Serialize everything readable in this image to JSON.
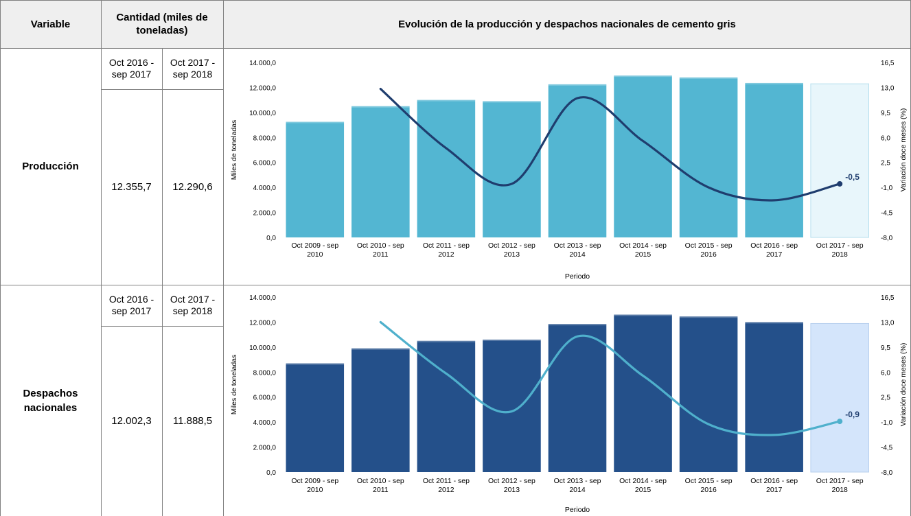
{
  "header": {
    "variable": "Variable",
    "cantidad": "Cantidad (miles de toneladas)",
    "chart_title": "Evolución de la producción y despachos nacionales de cemento gris"
  },
  "rows": [
    {
      "label": "Producción",
      "period_a": "Oct 2016 - sep 2017",
      "period_b": "Oct 2017 - sep 2018",
      "value_a": "12.355,7",
      "value_b": "12.290,6"
    },
    {
      "label": "Despachos nacionales",
      "period_a": "Oct 2016 - sep 2017",
      "period_b": "Oct 2017 - sep 2018",
      "value_a": "12.002,3",
      "value_b": "11.888,5"
    }
  ],
  "chart_data": [
    {
      "type": "bar",
      "categories": [
        "Oct 2009 - sep 2010",
        "Oct 2010 - sep 2011",
        "Oct 2011 - sep 2012",
        "Oct 2012 - sep 2013",
        "Oct 2013 - sep 2014",
        "Oct 2014 - sep 2015",
        "Oct 2015 - sep 2016",
        "Oct 2016 - sep 2017",
        "Oct 2017 - sep 2018"
      ],
      "series": [
        {
          "values": [
            9250,
            10500,
            11000,
            10900,
            12250,
            12950,
            12800,
            12356,
            12291
          ],
          "axis": "left"
        },
        {
          "type": "line",
          "values": [
            null,
            12.8,
            4.5,
            -0.5,
            11.5,
            5.5,
            -1.0,
            -2.8,
            -0.5
          ],
          "axis": "right"
        }
      ],
      "xlabel": "Periodo",
      "ylabel": "Miles de toneladas",
      "y2label": "Variación doce meses (%)",
      "ylim": [
        0,
        14000
      ],
      "y2lim": [
        -8.0,
        16.5
      ],
      "yticks": [
        "0,0",
        "2.000,0",
        "4.000,0",
        "6.000,0",
        "8.000,0",
        "10.000,0",
        "12.000,0",
        "14.000,0"
      ],
      "y2ticks": [
        "-8,0",
        "-4,5",
        "-1,0",
        "2,5",
        "6,0",
        "9,5",
        "13,0",
        "16,5"
      ],
      "annotation": "-0,5",
      "colors": {
        "bar": "#53b6d2",
        "bar_highlight": "#e8f6fb",
        "bar_highlight_border": "#b6dfee",
        "line": "#1f3d6e",
        "annotation": "#1f3d6e"
      }
    },
    {
      "type": "bar",
      "categories": [
        "Oct 2009 - sep 2010",
        "Oct 2010 - sep 2011",
        "Oct 2011 - sep 2012",
        "Oct 2012 - sep 2013",
        "Oct 2013 - sep 2014",
        "Oct 2014 - sep 2015",
        "Oct 2015 - sep 2016",
        "Oct 2016 - sep 2017",
        "Oct 2017 - sep 2018"
      ],
      "series": [
        {
          "values": [
            8700,
            9900,
            10500,
            10600,
            11850,
            12600,
            12450,
            12002,
            11889
          ],
          "axis": "left"
        },
        {
          "type": "line",
          "values": [
            null,
            13.0,
            5.8,
            0.5,
            11.0,
            5.5,
            -1.3,
            -2.8,
            -0.9
          ],
          "axis": "right"
        }
      ],
      "xlabel": "Periodo",
      "ylabel": "Miles de toneladas",
      "y2label": "Variación doce meses (%)",
      "ylim": [
        0,
        14000
      ],
      "y2lim": [
        -8.0,
        16.5
      ],
      "yticks": [
        "0,0",
        "2.000,0",
        "4.000,0",
        "6.000,0",
        "8.000,0",
        "10.000,0",
        "12.000,0",
        "14.000,0"
      ],
      "y2ticks": [
        "-8,0",
        "-4,5",
        "-1,0",
        "2,5",
        "6,0",
        "9,5",
        "13,0",
        "16,5"
      ],
      "annotation": "-0,9",
      "colors": {
        "bar": "#24508a",
        "bar_highlight": "#d4e5fb",
        "bar_highlight_border": "#b7cfee",
        "line": "#4fb0cc",
        "annotation": "#1f3d6e"
      }
    }
  ]
}
